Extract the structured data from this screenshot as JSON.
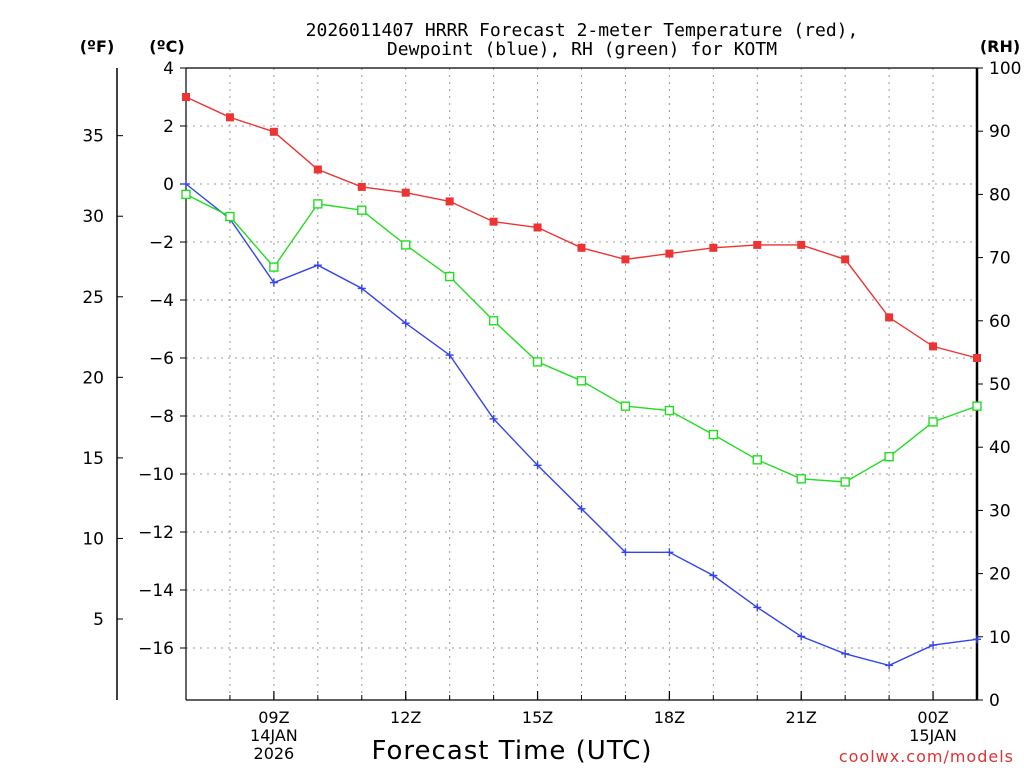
{
  "chart_data": {
    "type": "line",
    "title_line1": "2026011407 HRRR Forecast 2-meter Temperature (red),",
    "title_line2": "Dewpoint (blue), RH (green) for KOTM",
    "xlabel": "Forecast Time (UTC)",
    "credit": "coolwx.com/models",
    "unit_labels": {
      "fahrenheit": "(ºF)",
      "celsius": "(ºC)",
      "rh": "(RH)"
    },
    "x_hours": [
      7,
      8,
      9,
      10,
      11,
      12,
      13,
      14,
      15,
      16,
      17,
      18,
      19,
      20,
      21,
      22,
      23,
      24,
      25
    ],
    "xlim": [
      7,
      25
    ],
    "x_ticks": [
      {
        "hour": 9,
        "line1": "09Z",
        "line2": "14JAN",
        "line3": "2026"
      },
      {
        "hour": 12,
        "line1": "12Z",
        "line2": "",
        "line3": ""
      },
      {
        "hour": 15,
        "line1": "15Z",
        "line2": "",
        "line3": ""
      },
      {
        "hour": 18,
        "line1": "18Z",
        "line2": "",
        "line3": ""
      },
      {
        "hour": 21,
        "line1": "21Z",
        "line2": "",
        "line3": ""
      },
      {
        "hour": 24,
        "line1": "00Z",
        "line2": "15JAN",
        "line3": ""
      }
    ],
    "celsius_axis": {
      "ylim": [
        -17.5,
        4
      ],
      "ticks": [
        4,
        2,
        0,
        -2,
        -4,
        -6,
        -8,
        -10,
        -12,
        -14,
        -16
      ]
    },
    "fahrenheit_axis": {
      "ticks": [
        35,
        30,
        25,
        20,
        15,
        10,
        5
      ]
    },
    "rh_axis": {
      "ylim": [
        0,
        100
      ],
      "ticks": [
        100,
        90,
        80,
        70,
        60,
        50,
        40,
        30,
        20,
        10,
        0
      ]
    },
    "series": [
      {
        "name": "Temperature",
        "color": "#ee3333",
        "axis": "celsius",
        "marker": "filled-square",
        "values": [
          3.0,
          2.3,
          1.8,
          0.5,
          -0.1,
          -0.3,
          -0.6,
          -1.3,
          -1.5,
          -2.2,
          -2.6,
          -2.4,
          -2.2,
          -2.1,
          -2.1,
          -2.6,
          -4.6,
          -5.6,
          -6.0
        ]
      },
      {
        "name": "Dewpoint",
        "color": "#3344ee",
        "axis": "celsius",
        "marker": "plus",
        "values": [
          0.0,
          -1.2,
          -3.4,
          -2.8,
          -3.6,
          -4.8,
          -5.9,
          -8.1,
          -9.7,
          -11.2,
          -12.7,
          -12.7,
          -13.5,
          -14.6,
          -15.6,
          -16.2,
          -16.6,
          -15.9,
          -15.7
        ]
      },
      {
        "name": "RH",
        "color": "#22dd22",
        "axis": "rh",
        "marker": "open-square",
        "values": [
          80,
          76.5,
          68.5,
          78.5,
          77.5,
          72,
          67,
          60,
          53.5,
          50.5,
          46.5,
          45.8,
          42,
          38,
          35,
          34.5,
          38.5,
          44,
          46.5
        ]
      }
    ]
  }
}
